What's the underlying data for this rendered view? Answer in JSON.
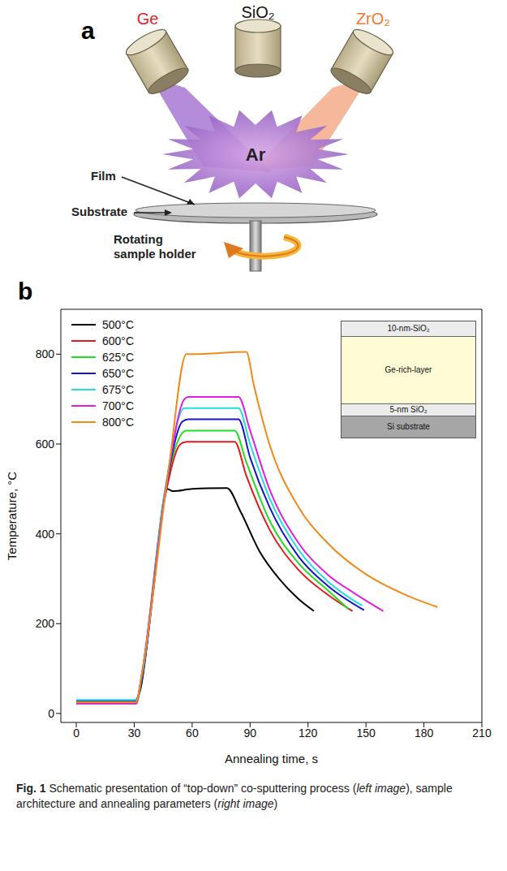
{
  "panel_a": {
    "label": "a",
    "targets": [
      {
        "label": "Ge",
        "color": "#e3222b"
      },
      {
        "label": "SiO₂",
        "color": "#111111"
      },
      {
        "label": "ZrO₂",
        "color": "#f07a32"
      }
    ],
    "gas": "Ar",
    "film": "Film",
    "substrate": "Substrate",
    "holder": "Rotating sample holder"
  },
  "panel_b": {
    "label": "b",
    "inset": [
      "10-nm-SiO₂",
      "Ge-rich-layer",
      "5-nm SiO₂",
      "Si substrate"
    ]
  },
  "chart_data": {
    "type": "line",
    "x_label": "Annealing time, s",
    "y_label": "Temperature, °C",
    "xlim": [
      -8,
      210
    ],
    "xticks": [
      0,
      30,
      60,
      90,
      120,
      150,
      180,
      210
    ],
    "ylim": [
      -20,
      900
    ],
    "yticks": [
      0,
      200,
      400,
      600,
      800
    ],
    "legend": "upper left",
    "series": [
      {
        "name": "500°C",
        "color": "#000000",
        "x": [
          0,
          30,
          33,
          40,
          47,
          50,
          60,
          78,
          85,
          95,
          105,
          115,
          123
        ],
        "values": [
          28,
          28,
          50,
          280,
          500,
          495,
          500,
          502,
          450,
          360,
          300,
          255,
          228
        ]
      },
      {
        "name": "600°C",
        "color": "#e8191c",
        "x": [
          0,
          31,
          33,
          45,
          54,
          57,
          70,
          82,
          88,
          100,
          115,
          130,
          143
        ],
        "values": [
          25,
          25,
          60,
          460,
          600,
          605,
          605,
          605,
          530,
          410,
          320,
          265,
          228
        ]
      },
      {
        "name": "625°C",
        "color": "#22dd22",
        "x": [
          0,
          31,
          34,
          45,
          55,
          57,
          82,
          88,
          100,
          115,
          130,
          141
        ],
        "values": [
          22,
          22,
          80,
          470,
          625,
          630,
          630,
          560,
          430,
          335,
          275,
          232
        ]
      },
      {
        "name": "650°C",
        "color": "#1515c8",
        "x": [
          0,
          31,
          34,
          46,
          55,
          58,
          84,
          90,
          100,
          115,
          130,
          149
        ],
        "values": [
          27,
          27,
          80,
          490,
          650,
          655,
          655,
          570,
          460,
          350,
          285,
          230
        ]
      },
      {
        "name": "675°C",
        "color": "#22dddd",
        "x": [
          0,
          31,
          34,
          46,
          56,
          59,
          84,
          90,
          100,
          115,
          130,
          148
        ],
        "values": [
          30,
          30,
          85,
          500,
          680,
          680,
          680,
          600,
          480,
          365,
          295,
          240
        ]
      },
      {
        "name": "700°C",
        "color": "#e020e0",
        "x": [
          0,
          31,
          34,
          47,
          56,
          58,
          84,
          90,
          100,
          115,
          130,
          145,
          159
        ],
        "values": [
          22,
          22,
          90,
          520,
          700,
          705,
          705,
          630,
          500,
          380,
          310,
          265,
          228
        ]
      },
      {
        "name": "800°C",
        "color": "#f28a1a",
        "x": [
          0,
          31,
          34,
          48,
          57,
          60,
          88,
          92,
          100,
          115,
          130,
          150,
          170,
          187
        ],
        "values": [
          25,
          25,
          90,
          550,
          800,
          800,
          805,
          730,
          600,
          460,
          380,
          310,
          265,
          237
        ]
      }
    ]
  },
  "caption": {
    "label": "Fig. 1",
    "parts": [
      {
        "text": "Schematic presentation of “top-down” co-sputtering process ("
      },
      {
        "text": "left image",
        "italic": true
      },
      {
        "text": "), sample architecture and annealing parameters ("
      },
      {
        "text": "right image",
        "italic": true
      },
      {
        "text": ")"
      }
    ]
  }
}
